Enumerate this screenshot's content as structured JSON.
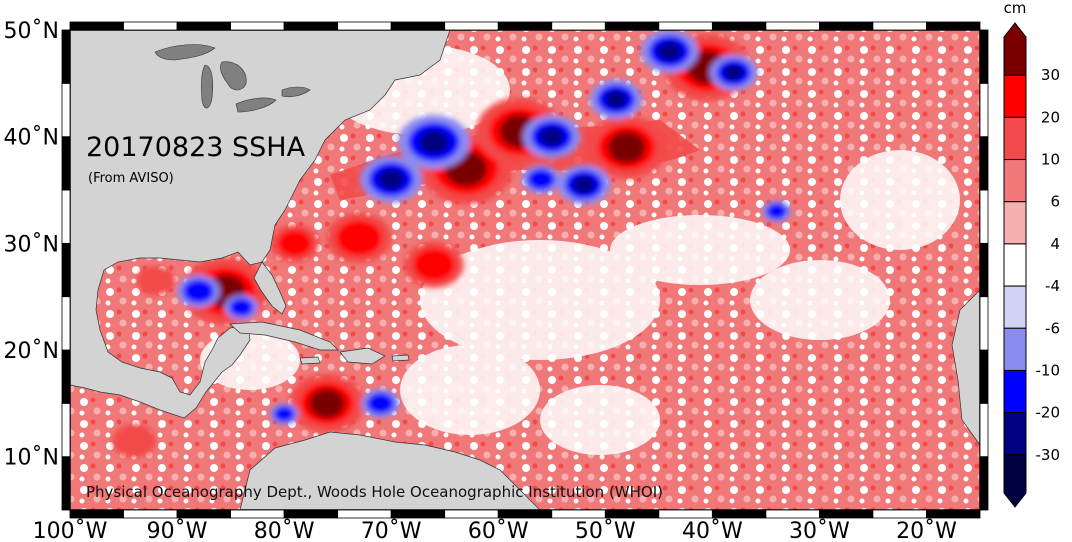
{
  "map": {
    "title": "20170823 SSHA",
    "subtitle": "(From AVISO)",
    "credit": "Physical Oceanography Dept., Woods Hole Oceanographic Institution (WHOI)",
    "lon_range": [
      -100,
      -15
    ],
    "lat_range": [
      5,
      50
    ],
    "lon_ticks": [
      "100˚W",
      "90˚W",
      "80˚W",
      "70˚W",
      "60˚W",
      "50˚W",
      "40˚W",
      "30˚W",
      "20˚W"
    ],
    "lat_ticks": [
      "10˚N",
      "20˚N",
      "30˚N",
      "40˚N",
      "50˚N"
    ],
    "land_color": "#d3d3d3",
    "lake_color": "#808080"
  },
  "colorbar": {
    "unit": "cm",
    "levels": [
      "30",
      "20",
      "10",
      "6",
      "4",
      "-4",
      "-6",
      "-10",
      "-20",
      "-30"
    ],
    "colors": [
      "#7a0000",
      "#ff0000",
      "#f24a4a",
      "#f07878",
      "#f7b0b0",
      "#ffffff",
      "#d2d2f2",
      "#8c8cf0",
      "#0000ff",
      "#000080",
      "#000040"
    ]
  },
  "features": {
    "warm_eddies": [
      {
        "lon": -85.5,
        "lat": 25.5,
        "value": 32
      },
      {
        "lon": -76,
        "lat": 15,
        "value": 28
      },
      {
        "lon": -73,
        "lat": 30.5,
        "value": 24
      },
      {
        "lon": -63,
        "lat": 37,
        "value": 34
      },
      {
        "lon": -58,
        "lat": 40.5,
        "value": 32
      },
      {
        "lon": -48,
        "lat": 39,
        "value": 30
      },
      {
        "lon": -40.5,
        "lat": 46.5,
        "value": 32
      },
      {
        "lon": -92,
        "lat": 26.5,
        "value": 14
      },
      {
        "lon": -94,
        "lat": 11.5,
        "value": 16
      },
      {
        "lon": -66,
        "lat": 28,
        "value": 22
      },
      {
        "lon": -79,
        "lat": 30,
        "value": 18
      }
    ],
    "cold_eddies": [
      {
        "lon": -70,
        "lat": 36,
        "value": -26
      },
      {
        "lon": -66,
        "lat": 39.5,
        "value": -30
      },
      {
        "lon": -55,
        "lat": 40,
        "value": -24
      },
      {
        "lon": -52,
        "lat": 35.5,
        "value": -22
      },
      {
        "lon": -49,
        "lat": 43.5,
        "value": -22
      },
      {
        "lon": -44,
        "lat": 48,
        "value": -24
      },
      {
        "lon": -38,
        "lat": 46,
        "value": -20
      },
      {
        "lon": -88,
        "lat": 25.5,
        "value": -18
      },
      {
        "lon": -84,
        "lat": 24,
        "value": -14
      },
      {
        "lon": -71,
        "lat": 15,
        "value": -16
      },
      {
        "lon": -80,
        "lat": 14,
        "value": -12
      },
      {
        "lon": -56,
        "lat": 36,
        "value": -16
      },
      {
        "lon": -34,
        "lat": 33,
        "value": -12
      }
    ]
  }
}
